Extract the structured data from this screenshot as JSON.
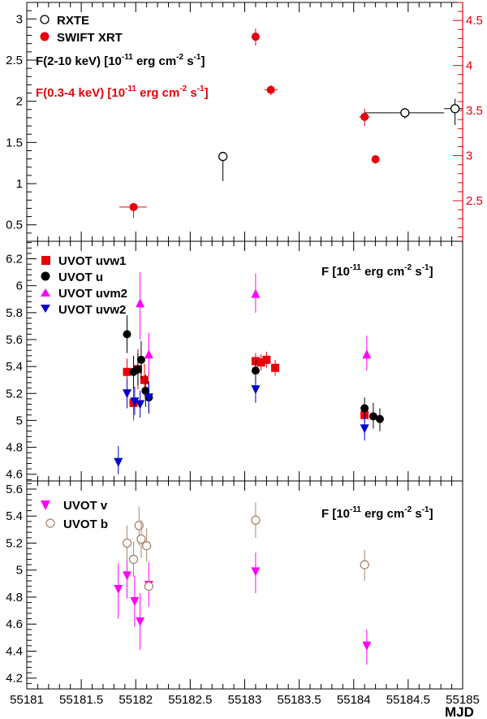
{
  "colors": {
    "red": "#e8000b",
    "black": "#000000",
    "magenta": "#ff00ff",
    "blue": "#0000d0",
    "brown": "#a8856e"
  },
  "xaxis": {
    "label": "MJD",
    "range": [
      55181,
      55185
    ],
    "tick_labels": [
      "55181",
      "55181.5",
      "55182",
      "55182.5",
      "55183",
      "55183.5",
      "55184",
      "55184.5",
      "55185"
    ]
  },
  "annotations": {
    "rxte_flux": "F(2-10 keV) [10-11 erg cm-2 s-1]",
    "xrt_flux": "F(0.3-4 keV) [10-11 erg cm-2 s-1]",
    "uvot_flux": "F [10-11 erg cm-2 s-1]",
    "optical_flux": "F [10-11 erg cm-2 s-1]"
  },
  "chart_data": [
    {
      "type": "scatter",
      "panel": "top",
      "ylim": [
        0.3,
        3.2
      ],
      "y_tick_labels": [
        "0.5",
        "1",
        "1.5",
        "2",
        "2.5",
        "3"
      ],
      "right_axis": {
        "ylim": [
          2.05,
          4.7
        ],
        "tick_labels": [
          "2.5",
          "3",
          "3.5",
          "4",
          "4.5"
        ]
      },
      "series": [
        {
          "name": "RXTE",
          "marker": "open-circle",
          "color": "#000000",
          "axis": "left",
          "points": [
            {
              "x": 55182.8,
              "y": 1.33,
              "ylo": 1.03,
              "yhi": 1.33
            },
            {
              "x": 55184.47,
              "y": 1.86,
              "ylo": 1.79,
              "yhi": 1.92,
              "xlo": 55184.1,
              "xhi": 55184.83
            },
            {
              "x": 55184.93,
              "y": 1.91,
              "ylo": 1.71,
              "yhi": 2.03,
              "xlo": 55184.83,
              "xhi": 55185.0
            }
          ]
        },
        {
          "name": "SWIFT XRT",
          "marker": "filled-circle",
          "color": "#e8000b",
          "axis": "right",
          "points": [
            {
              "x": 55181.98,
              "y": 2.43,
              "ylo": 2.31,
              "yhi": 2.44,
              "xlo": 55181.85,
              "xhi": 55182.1
            },
            {
              "x": 55183.1,
              "y": 4.32,
              "ylo": 4.22,
              "yhi": 4.41
            },
            {
              "x": 55183.24,
              "y": 3.73,
              "ylo": 3.67,
              "yhi": 3.78,
              "xlo": 55183.18,
              "xhi": 55183.3
            },
            {
              "x": 55184.1,
              "y": 3.43,
              "ylo": 3.33,
              "yhi": 3.52,
              "xlo": 55184.05,
              "xhi": 55184.15
            },
            {
              "x": 55184.2,
              "y": 2.96,
              "ylo": 2.91,
              "yhi": 3.0
            }
          ]
        }
      ]
    },
    {
      "type": "scatter",
      "panel": "middle",
      "ylim": [
        4.55,
        6.33
      ],
      "y_tick_labels": [
        "4.6",
        "4.8",
        "5",
        "5.2",
        "5.4",
        "5.6",
        "5.8",
        "6",
        "6.2"
      ],
      "series": [
        {
          "name": "UVOT uvw1",
          "marker": "square",
          "color": "#e8000b",
          "points": [
            {
              "x": 55181.92,
              "y": 5.36,
              "ylo": 5.26,
              "yhi": 5.46
            },
            {
              "x": 55181.98,
              "y": 5.13,
              "ylo": 5.0,
              "yhi": 5.25
            },
            {
              "x": 55182.02,
              "y": 5.38,
              "ylo": 5.23,
              "yhi": 5.53
            },
            {
              "x": 55182.08,
              "y": 5.3,
              "ylo": 5.18,
              "yhi": 5.42
            },
            {
              "x": 55183.1,
              "y": 5.44,
              "ylo": 5.38,
              "yhi": 5.5
            },
            {
              "x": 55183.15,
              "y": 5.43,
              "ylo": 5.37,
              "yhi": 5.49
            },
            {
              "x": 55183.2,
              "y": 5.45,
              "ylo": 5.39,
              "yhi": 5.51
            },
            {
              "x": 55183.28,
              "y": 5.39,
              "ylo": 5.33,
              "yhi": 5.45
            },
            {
              "x": 55184.1,
              "y": 5.04,
              "ylo": 4.99,
              "yhi": 5.1
            }
          ]
        },
        {
          "name": "UVOT u",
          "marker": "filled-circle",
          "color": "#000000",
          "points": [
            {
              "x": 55181.92,
              "y": 5.64,
              "ylo": 5.5,
              "yhi": 5.78
            },
            {
              "x": 55181.98,
              "y": 5.36,
              "ylo": 5.24,
              "yhi": 5.48
            },
            {
              "x": 55182.02,
              "y": 5.38,
              "ylo": 5.26,
              "yhi": 5.5
            },
            {
              "x": 55182.05,
              "y": 5.45,
              "ylo": 5.31,
              "yhi": 5.59
            },
            {
              "x": 55182.09,
              "y": 5.22,
              "ylo": 5.1,
              "yhi": 5.34
            },
            {
              "x": 55182.12,
              "y": 5.17,
              "ylo": 5.05,
              "yhi": 5.29
            },
            {
              "x": 55183.1,
              "y": 5.37,
              "ylo": 5.28,
              "yhi": 5.45
            },
            {
              "x": 55184.1,
              "y": 5.09,
              "ylo": 5.01,
              "yhi": 5.17
            },
            {
              "x": 55184.18,
              "y": 5.03,
              "ylo": 4.94,
              "yhi": 5.13
            },
            {
              "x": 55184.24,
              "y": 5.01,
              "ylo": 4.92,
              "yhi": 5.09
            }
          ]
        },
        {
          "name": "UVOT uvm2",
          "marker": "triangle-up",
          "color": "#ff00ff",
          "points": [
            {
              "x": 55182.04,
              "y": 5.87,
              "ylo": 5.6,
              "yhi": 6.1
            },
            {
              "x": 55182.12,
              "y": 5.49,
              "ylo": 5.33,
              "yhi": 5.65
            },
            {
              "x": 55183.1,
              "y": 5.94,
              "ylo": 5.8,
              "yhi": 6.09
            },
            {
              "x": 55184.12,
              "y": 5.49,
              "ylo": 5.37,
              "yhi": 5.63
            }
          ]
        },
        {
          "name": "UVOT uvw2",
          "marker": "triangle-down",
          "color": "#0000d0",
          "points": [
            {
              "x": 55181.84,
              "y": 4.69,
              "ylo": 4.6,
              "yhi": 4.81
            },
            {
              "x": 55181.92,
              "y": 5.2,
              "ylo": 5.09,
              "yhi": 5.31
            },
            {
              "x": 55181.99,
              "y": 5.14,
              "ylo": 5.04,
              "yhi": 5.25
            },
            {
              "x": 55182.04,
              "y": 5.12,
              "ylo": 5.02,
              "yhi": 5.22
            },
            {
              "x": 55182.12,
              "y": 5.17,
              "ylo": 5.06,
              "yhi": 5.28
            },
            {
              "x": 55183.1,
              "y": 5.23,
              "ylo": 5.13,
              "yhi": 5.32
            },
            {
              "x": 55184.1,
              "y": 4.94,
              "ylo": 4.85,
              "yhi": 5.03
            }
          ]
        }
      ]
    },
    {
      "type": "scatter",
      "panel": "bottom",
      "ylim": [
        4.12,
        5.66
      ],
      "y_tick_labels": [
        "4.2",
        "4.4",
        "4.6",
        "4.8",
        "5",
        "5.2",
        "5.4",
        "5.6"
      ],
      "series": [
        {
          "name": "UVOT v",
          "marker": "triangle-down",
          "color": "#ff00ff",
          "points": [
            {
              "x": 55181.84,
              "y": 4.86,
              "ylo": 4.64,
              "yhi": 5.05
            },
            {
              "x": 55181.92,
              "y": 4.96,
              "ylo": 4.79,
              "yhi": 5.13
            },
            {
              "x": 55181.99,
              "y": 4.77,
              "ylo": 4.58,
              "yhi": 4.96
            },
            {
              "x": 55182.04,
              "y": 4.62,
              "ylo": 4.41,
              "yhi": 4.83
            },
            {
              "x": 55182.12,
              "y": 4.89,
              "ylo": 4.73,
              "yhi": 5.06
            },
            {
              "x": 55183.1,
              "y": 4.99,
              "ylo": 4.83,
              "yhi": 5.13
            },
            {
              "x": 55184.12,
              "y": 4.44,
              "ylo": 4.3,
              "yhi": 4.56
            }
          ]
        },
        {
          "name": "UVOT b",
          "marker": "open-circle",
          "color": "#a8856e",
          "points": [
            {
              "x": 55181.92,
              "y": 5.2,
              "ylo": 5.07,
              "yhi": 5.33
            },
            {
              "x": 55181.98,
              "y": 5.08,
              "ylo": 4.95,
              "yhi": 5.21
            },
            {
              "x": 55182.03,
              "y": 5.33,
              "ylo": 5.18,
              "yhi": 5.47
            },
            {
              "x": 55182.05,
              "y": 5.23,
              "ylo": 5.09,
              "yhi": 5.37
            },
            {
              "x": 55182.1,
              "y": 5.18,
              "ylo": 5.06,
              "yhi": 5.31
            },
            {
              "x": 55182.12,
              "y": 4.88,
              "ylo": 4.83,
              "yhi": 4.93
            },
            {
              "x": 55183.1,
              "y": 5.37,
              "ylo": 5.24,
              "yhi": 5.5
            },
            {
              "x": 55184.1,
              "y": 5.04,
              "ylo": 4.92,
              "yhi": 5.15
            }
          ]
        }
      ]
    }
  ]
}
